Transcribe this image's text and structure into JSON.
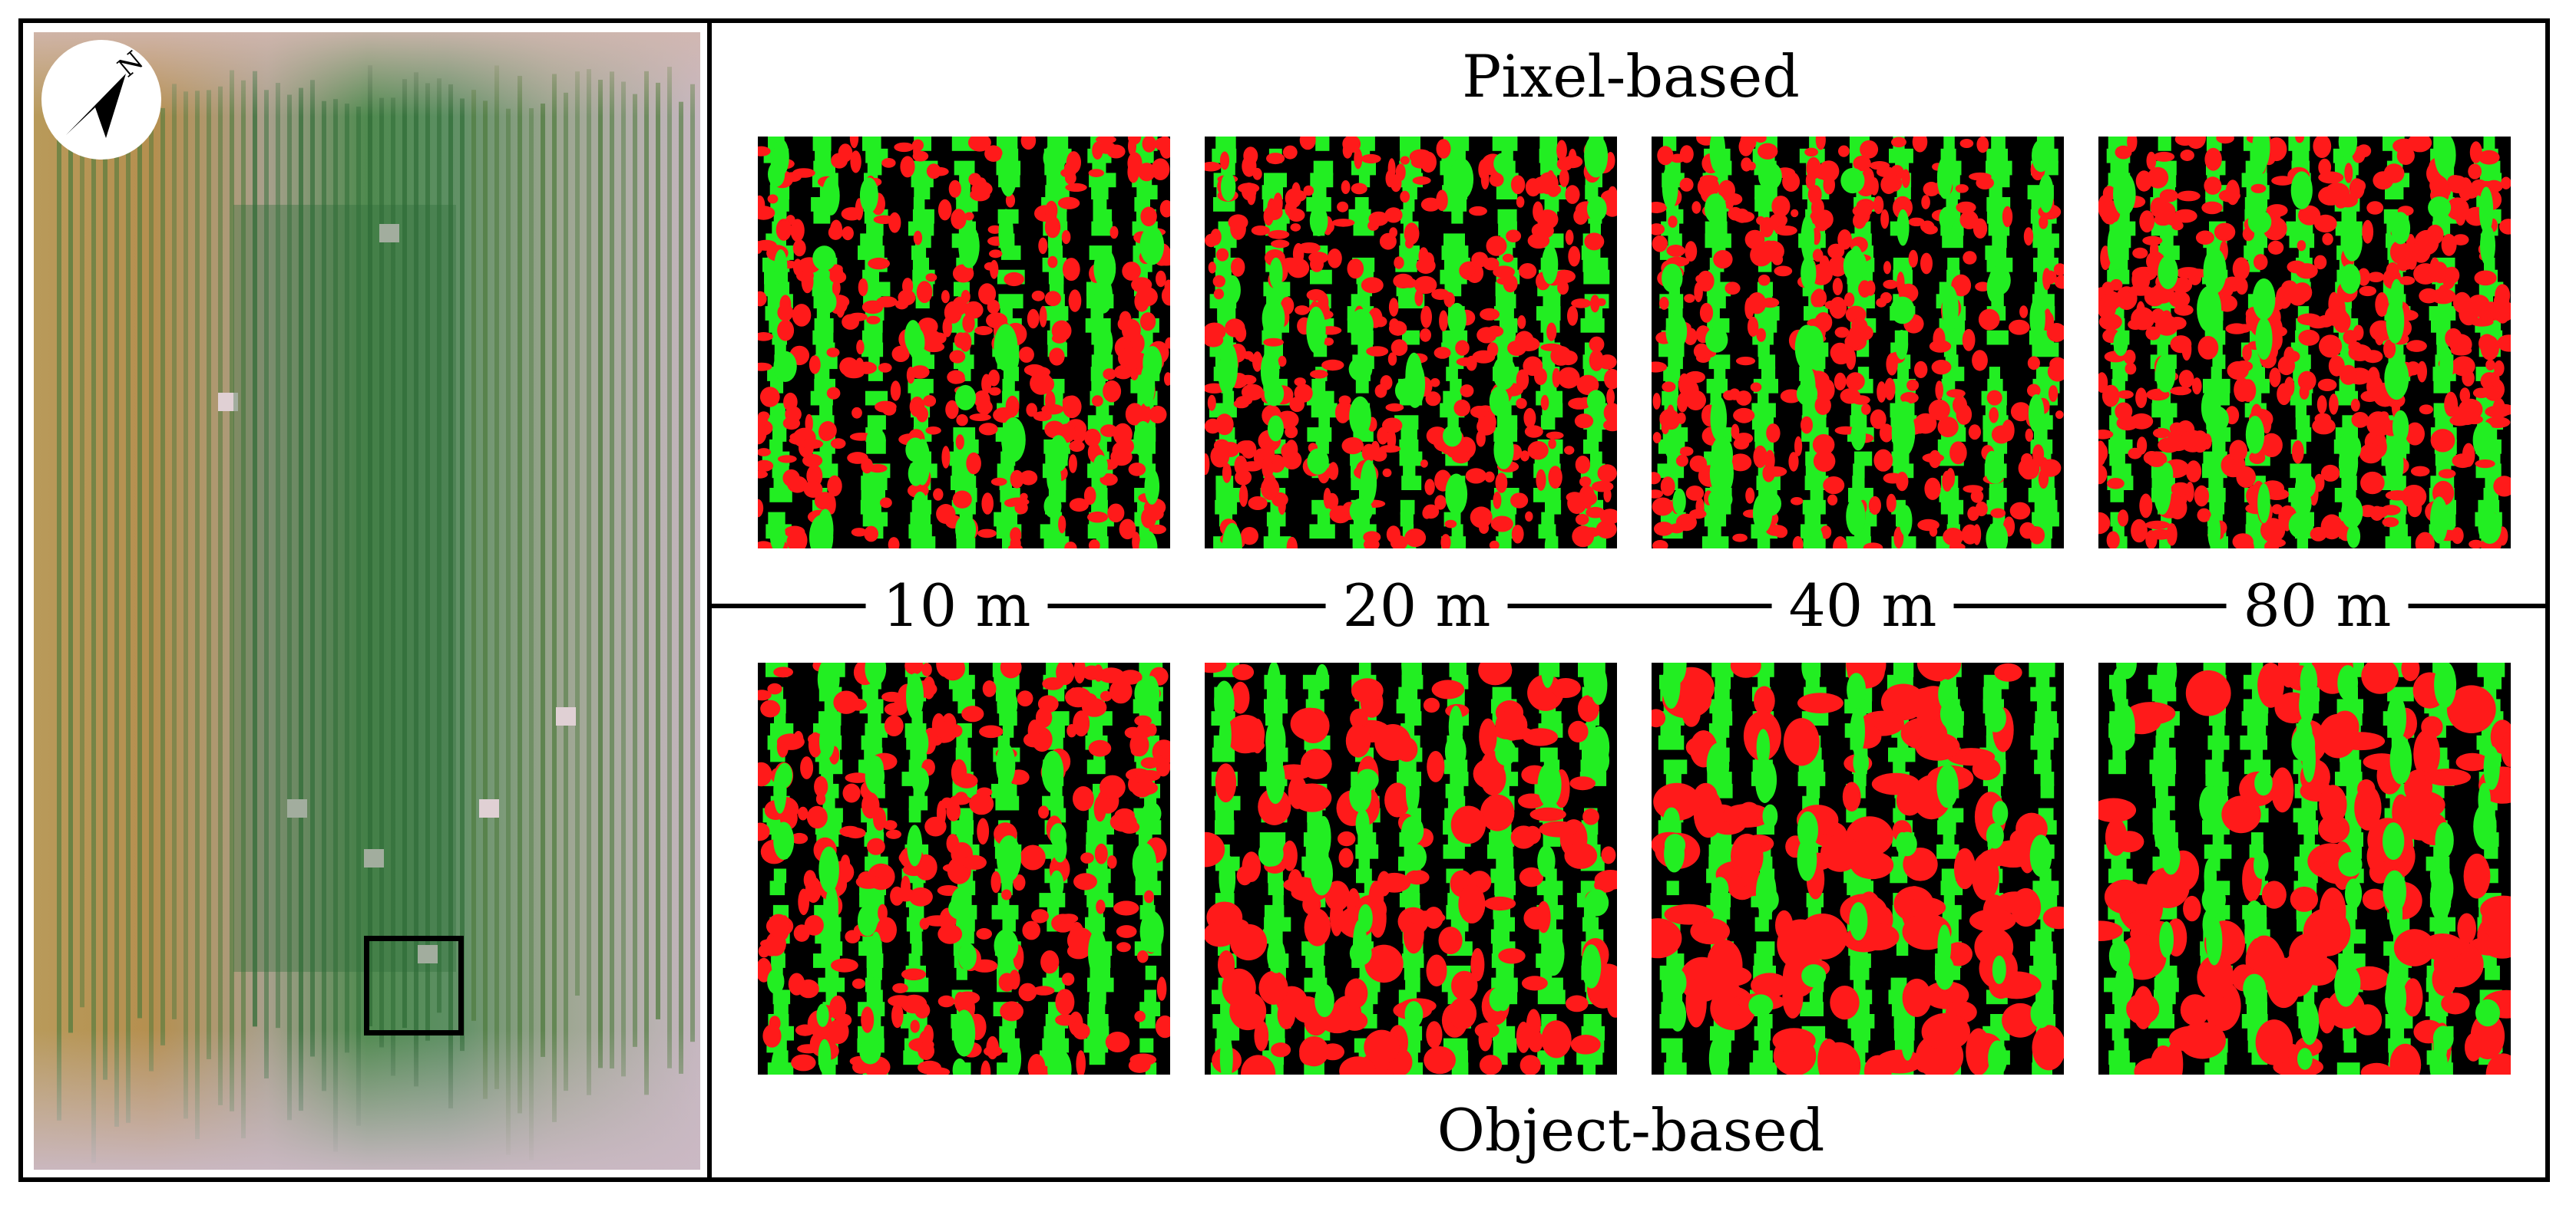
{
  "header": {
    "title": "Pixel-based"
  },
  "footer": {
    "title": "Object-based"
  },
  "scales": [
    {
      "label": "10 m"
    },
    {
      "label": "20 m"
    },
    {
      "label": "40 m"
    },
    {
      "label": "80 m"
    }
  ],
  "north_arrow": {
    "label": "N"
  },
  "colors": {
    "crop": "#22ee22",
    "weed": "#ff1a1a",
    "soil": "#000000",
    "field_green": "#3f7a3a",
    "field_soil": "#c9b3bb",
    "field_yellow": "#b8953f"
  }
}
